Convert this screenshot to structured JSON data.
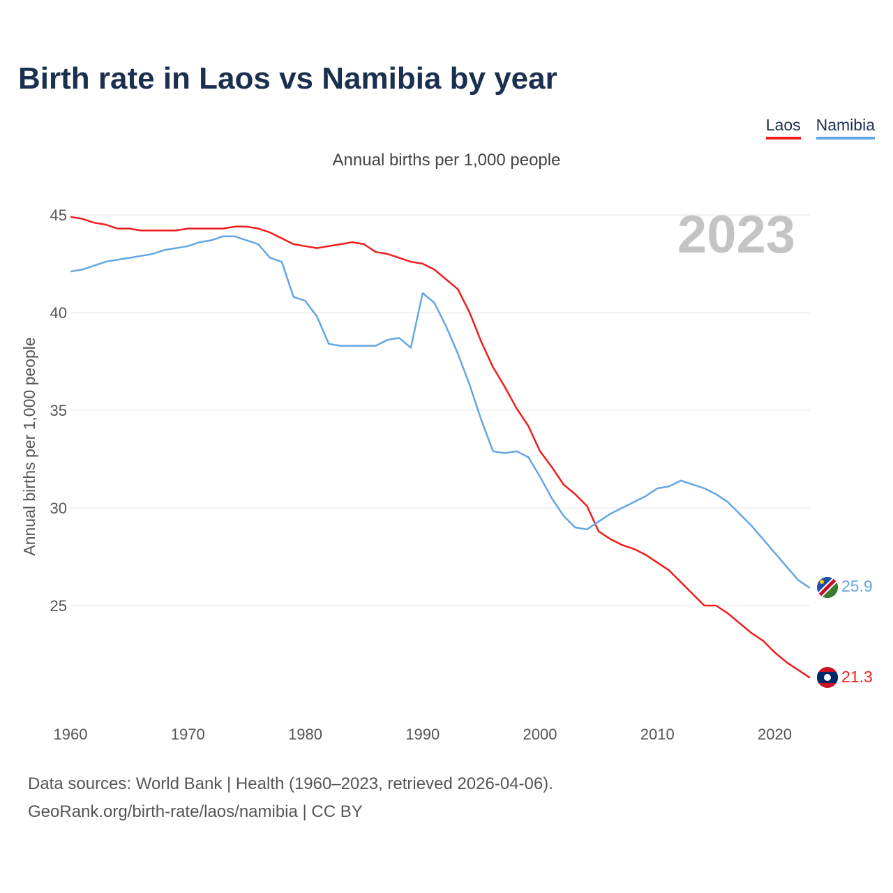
{
  "title": "Birth rate in Laos vs Namibia by year",
  "legend": [
    {
      "name": "Laos",
      "color": "#ef1c1c"
    },
    {
      "name": "Namibia",
      "color": "#63a6e4"
    }
  ],
  "subtitle": "Annual births per 1,000 people",
  "year_label": "2023",
  "footer": {
    "line1": "Data sources: World Bank | Health (1960–2023, retrieved 2026-04-06).",
    "line2": "GeoRank.org/birth-rate/laos/namibia | CC BY"
  },
  "chart_data": {
    "type": "line",
    "title": "Birth rate in Laos vs Namibia by year",
    "ylabel": "Annual births per 1,000 people",
    "xlabel": "",
    "xlim": [
      1960,
      2023
    ],
    "ylim": [
      20,
      45
    ],
    "yticks": [
      25,
      30,
      35,
      40,
      45
    ],
    "xticks": [
      1960,
      1970,
      1980,
      1990,
      2000,
      2010,
      2020
    ],
    "grid": true,
    "x": [
      1960,
      1961,
      1962,
      1963,
      1964,
      1965,
      1966,
      1967,
      1968,
      1969,
      1970,
      1971,
      1972,
      1973,
      1974,
      1975,
      1976,
      1977,
      1978,
      1979,
      1980,
      1981,
      1982,
      1983,
      1984,
      1985,
      1986,
      1987,
      1988,
      1989,
      1990,
      1991,
      1992,
      1993,
      1994,
      1995,
      1996,
      1997,
      1998,
      1999,
      2000,
      2001,
      2002,
      2003,
      2004,
      2005,
      2006,
      2007,
      2008,
      2009,
      2010,
      2011,
      2012,
      2013,
      2014,
      2015,
      2016,
      2017,
      2018,
      2019,
      2020,
      2021,
      2022,
      2023
    ],
    "series": [
      {
        "name": "Laos",
        "color": "#ef1c1c",
        "end_label": "21.3",
        "values": [
          44.9,
          44.8,
          44.6,
          44.5,
          44.3,
          44.3,
          44.2,
          44.2,
          44.2,
          44.2,
          44.3,
          44.3,
          44.3,
          44.3,
          44.4,
          44.4,
          44.3,
          44.1,
          43.8,
          43.5,
          43.4,
          43.3,
          43.4,
          43.5,
          43.6,
          43.5,
          43.1,
          43.0,
          42.8,
          42.6,
          42.5,
          42.2,
          41.7,
          41.2,
          40.0,
          38.5,
          37.2,
          36.2,
          35.1,
          34.2,
          32.9,
          32.1,
          31.2,
          30.7,
          30.1,
          28.8,
          28.4,
          28.1,
          27.9,
          27.6,
          27.2,
          26.8,
          26.2,
          25.6,
          25.0,
          25.0,
          24.6,
          24.1,
          23.6,
          23.2,
          22.6,
          22.1,
          21.7,
          21.3
        ]
      },
      {
        "name": "Namibia",
        "color": "#63a6e4",
        "end_label": "25.9",
        "values": [
          42.1,
          42.2,
          42.4,
          42.6,
          42.7,
          42.8,
          42.9,
          43.0,
          43.2,
          43.3,
          43.4,
          43.6,
          43.7,
          43.9,
          43.9,
          43.7,
          43.5,
          42.8,
          42.6,
          40.8,
          40.6,
          39.8,
          38.4,
          38.3,
          38.3,
          38.3,
          38.3,
          38.6,
          38.7,
          38.2,
          41.0,
          40.5,
          39.3,
          37.9,
          36.3,
          34.5,
          32.9,
          32.8,
          32.9,
          32.6,
          31.6,
          30.5,
          29.6,
          29.0,
          28.9,
          29.3,
          29.7,
          30.0,
          30.3,
          30.6,
          31.0,
          31.1,
          31.4,
          31.2,
          31.0,
          30.7,
          30.3,
          29.7,
          29.1,
          28.4,
          27.7,
          27.0,
          26.3,
          25.9
        ]
      }
    ]
  }
}
